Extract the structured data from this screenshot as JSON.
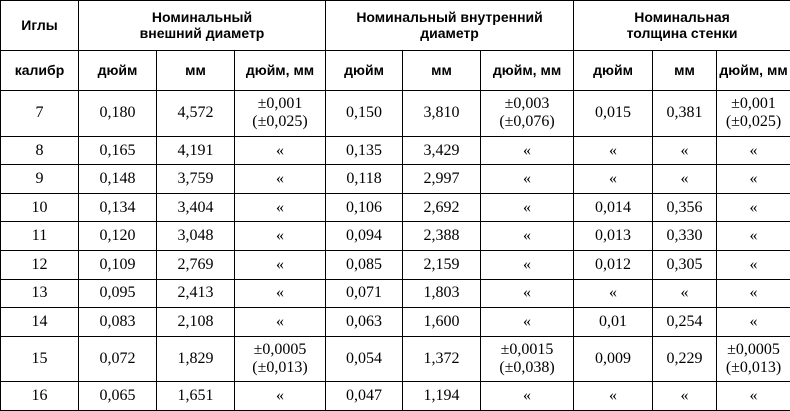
{
  "headers": {
    "needles": "Иглы",
    "outer": "Номинальный\nвнешний диаметр",
    "inner": "Номинальный внутренний\nдиаметр",
    "wall": "Номинальная\nтолщина стенки",
    "gauge": "калибр",
    "inch": "дюйм",
    "mm": "мм",
    "tol": "дюйм, мм"
  },
  "rows": [
    [
      "7",
      "0,180",
      "4,572",
      "±0,001\n(±0,025)",
      "0,150",
      "3,810",
      "±0,003\n(±0,076)",
      "0,015",
      "0,381",
      "±0,001\n(±0,025)"
    ],
    [
      "8",
      "0,165",
      "4,191",
      "«",
      "0,135",
      "3,429",
      "«",
      "«",
      "«",
      "«"
    ],
    [
      "9",
      "0,148",
      "3,759",
      "«",
      "0,118",
      "2,997",
      "«",
      "«",
      "«",
      "«"
    ],
    [
      "10",
      "0,134",
      "3,404",
      "«",
      "0,106",
      "2,692",
      "«",
      "0,014",
      "0,356",
      "«"
    ],
    [
      "11",
      "0,120",
      "3,048",
      "«",
      "0,094",
      "2,388",
      "«",
      "0,013",
      "0,330",
      "«"
    ],
    [
      "12",
      "0,109",
      "2,769",
      "«",
      "0,085",
      "2,159",
      "«",
      "0,012",
      "0,305",
      "«"
    ],
    [
      "13",
      "0,095",
      "2,413",
      "«",
      "0,071",
      "1,803",
      "«",
      "«",
      "«",
      "«"
    ],
    [
      "14",
      "0,083",
      "2,108",
      "«",
      "0,063",
      "1,600",
      "«",
      "0,01",
      "0,254",
      "«"
    ],
    [
      "15",
      "0,072",
      "1,829",
      "±0,0005\n(±0,013)",
      "0,054",
      "1,372",
      "±0,0015\n(±0,038)",
      "0,009",
      "0,229",
      "±0,0005\n(±0,013)"
    ],
    [
      "16",
      "0,065",
      "1,651",
      "«",
      "0,047",
      "1,194",
      "«",
      "«",
      "«",
      "«"
    ]
  ]
}
